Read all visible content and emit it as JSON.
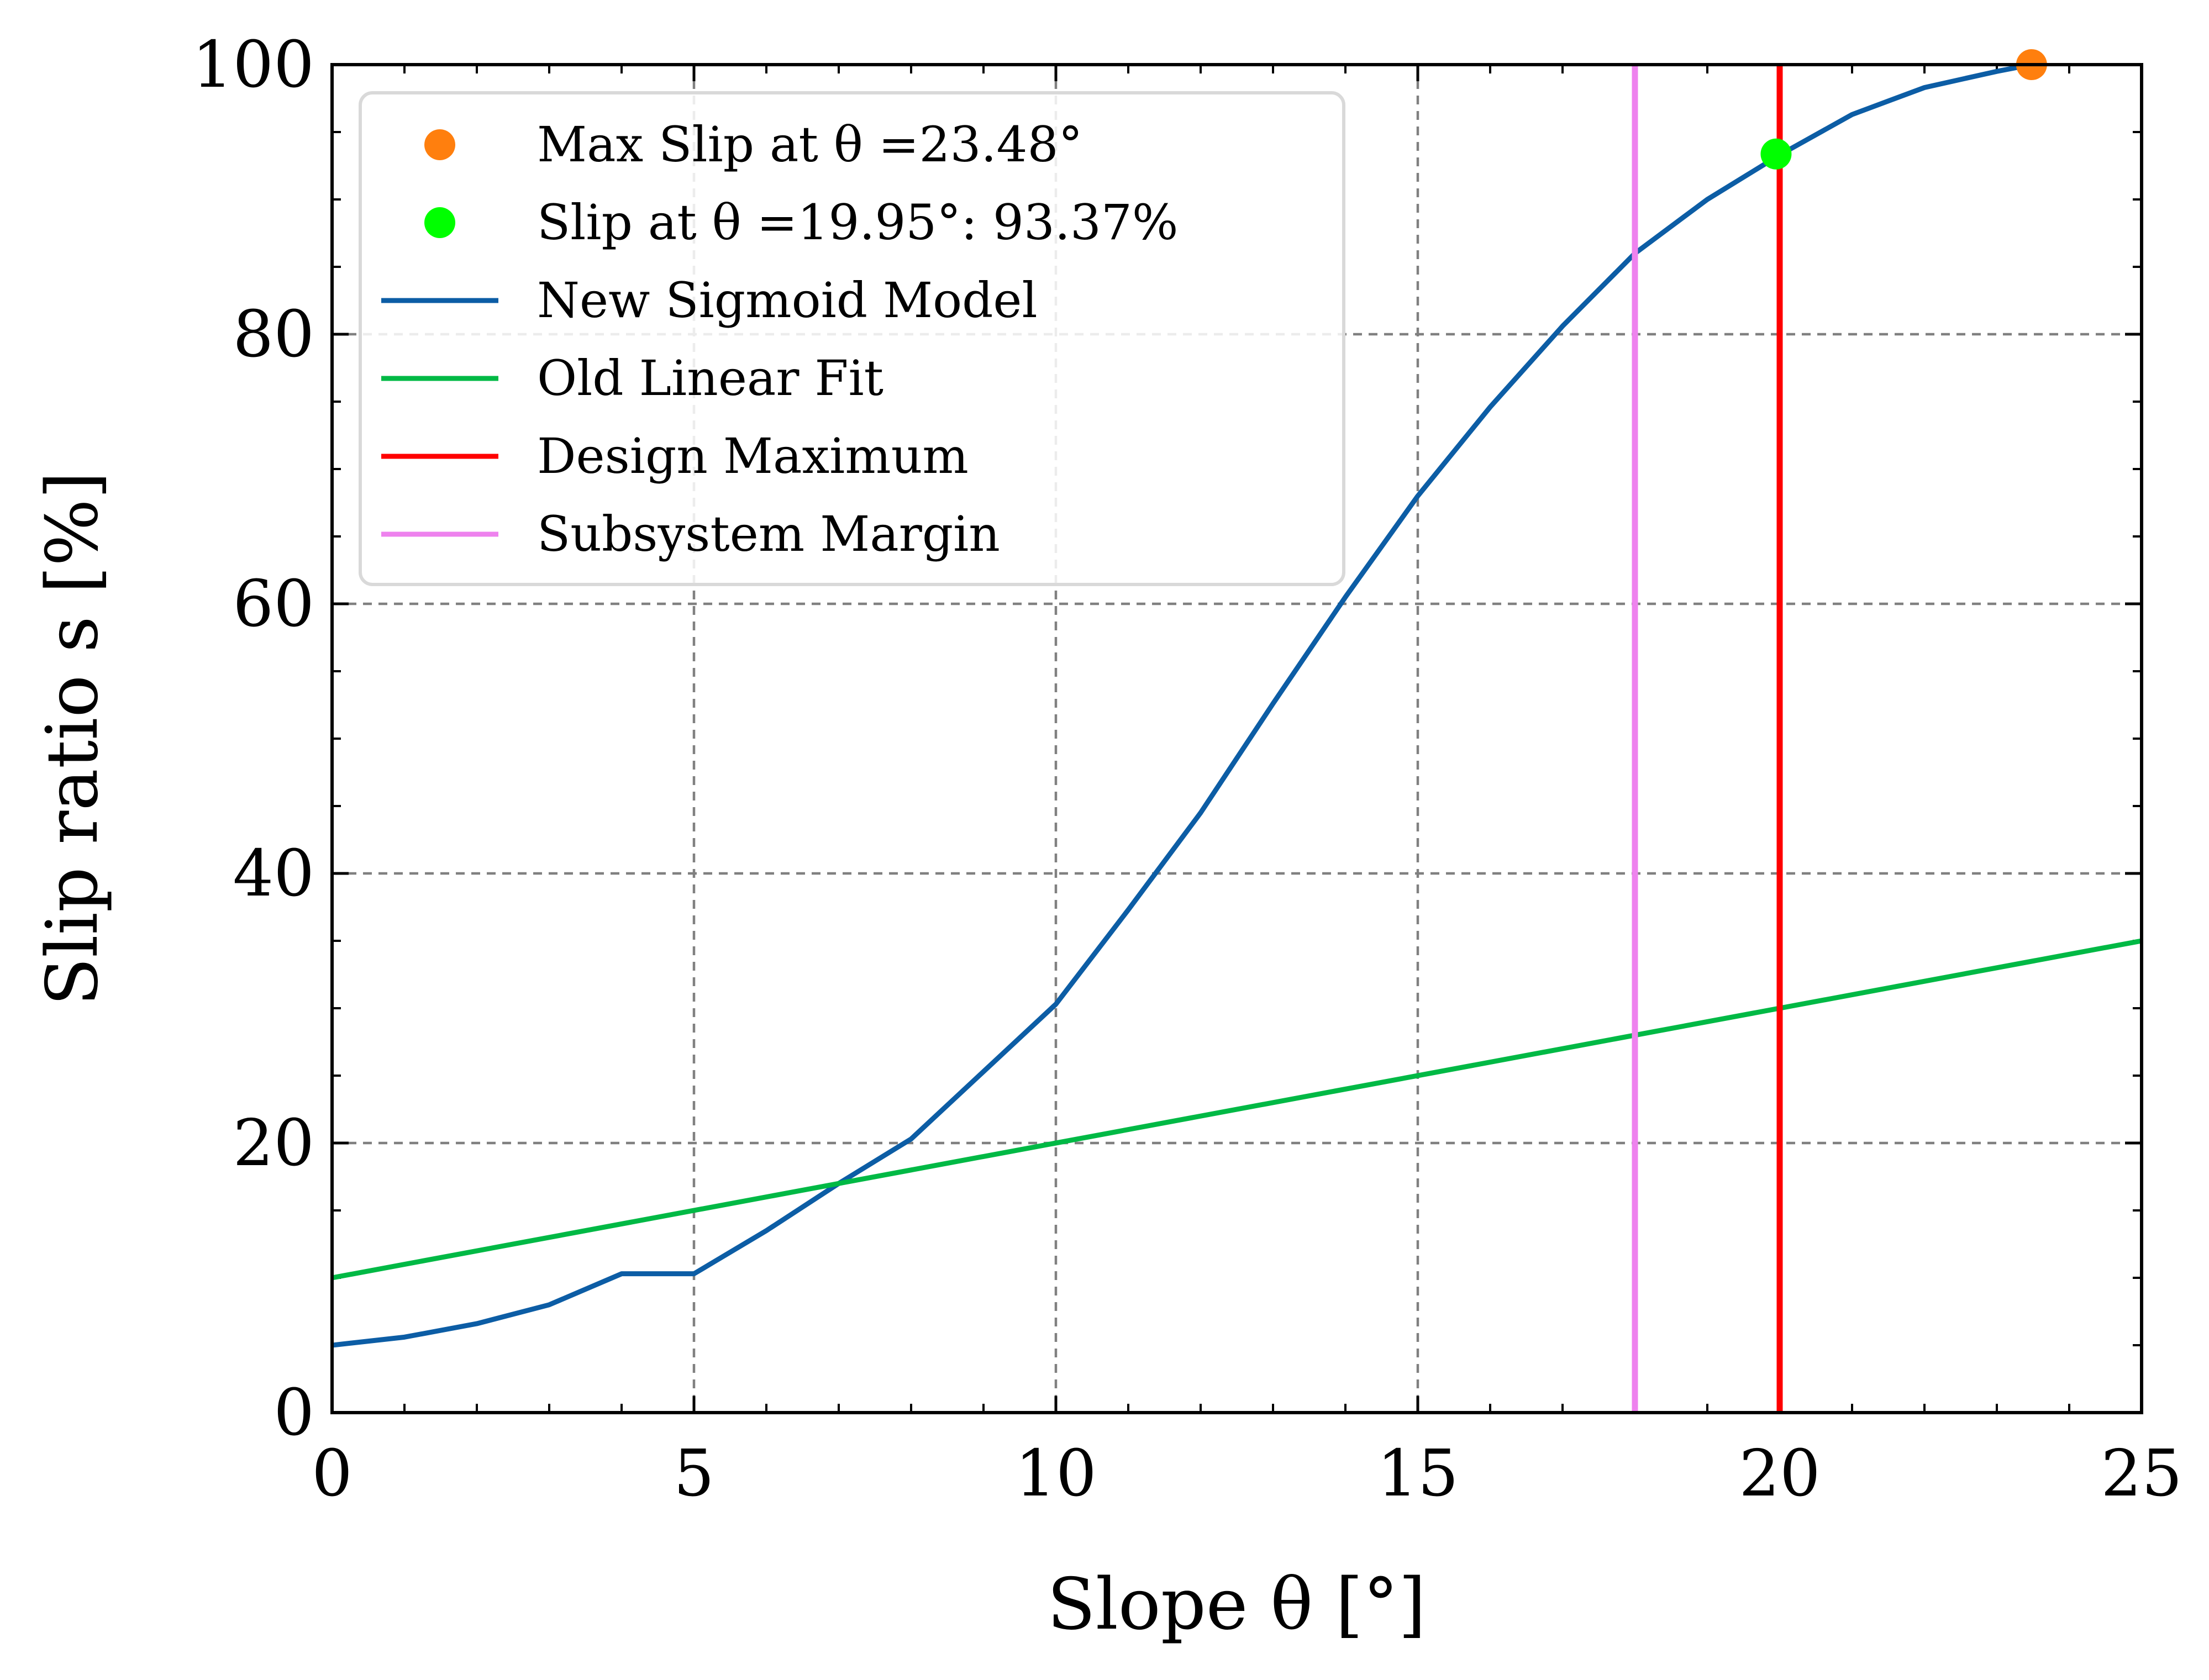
{
  "chart_data": {
    "type": "line",
    "xlabel": "Slope θ [°]",
    "ylabel": "Slip ratio s [%]",
    "xlim": [
      0,
      25
    ],
    "ylim": [
      0,
      100
    ],
    "x_ticks": [
      "0",
      "5",
      "10",
      "15",
      "20",
      "25"
    ],
    "y_ticks": [
      "0",
      "20",
      "40",
      "60",
      "80",
      "100"
    ],
    "grid": true,
    "legend_position": "top-left",
    "series": [
      {
        "name": "New Sigmoid Model",
        "type": "line",
        "color": "#0C5DA5",
        "x": [
          0,
          1,
          2,
          3,
          4,
          5,
          6,
          7,
          8,
          9,
          10,
          11,
          12,
          13,
          14,
          15,
          16,
          17,
          18,
          19,
          20,
          21,
          22,
          23,
          23.48
        ],
        "y": [
          5,
          5.6,
          6.6,
          8.0,
          10.3,
          10.3,
          13.5,
          17.0,
          20.3,
          25.3,
          30.3,
          37.3,
          44.5,
          52.6,
          60.5,
          68.0,
          74.6,
          80.6,
          86.0,
          90.0,
          93.3,
          96.3,
          98.3,
          99.5,
          100
        ]
      },
      {
        "name": "Old Linear Fit",
        "type": "line",
        "color": "#00B945",
        "x": [
          0,
          25
        ],
        "y": [
          10,
          35
        ]
      },
      {
        "name": "Design Maximum",
        "type": "vline",
        "color": "#FF0000",
        "x": 20
      },
      {
        "name": "Subsystem Margin",
        "type": "vline",
        "color": "#EE82EE",
        "x": 18
      },
      {
        "name": "Max Slip at θ =23.48°",
        "type": "point",
        "color": "#FF7F0E",
        "x": 23.48,
        "y": 100
      },
      {
        "name": "Slip at θ =19.95°: 93.37%",
        "type": "point",
        "color": "#00FF00",
        "x": 19.95,
        "y": 93.37
      }
    ],
    "legend_order": [
      "Max Slip at θ =23.48°",
      "Slip at θ =19.95°: 93.37%",
      "New Sigmoid Model",
      "Old Linear Fit",
      "Design Maximum",
      "Subsystem Margin"
    ]
  }
}
